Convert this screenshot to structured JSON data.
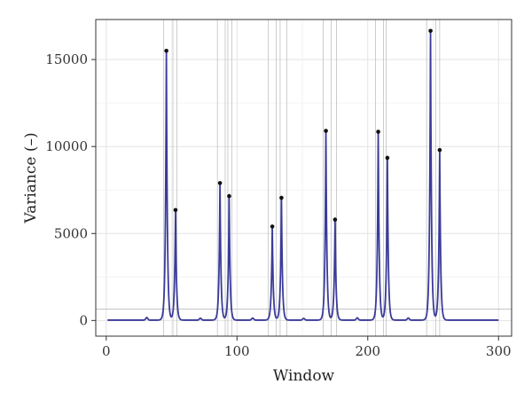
{
  "chart_data": {
    "type": "line",
    "title": "",
    "xlabel": "Window",
    "ylabel": "Variance (–)",
    "xlim": [
      -8,
      310
    ],
    "ylim": [
      -900,
      17300
    ],
    "xticks": [
      0,
      100,
      200,
      300
    ],
    "yticks": [
      0,
      5000,
      10000,
      15000
    ],
    "xtick_labels": [
      "0",
      "100",
      "200",
      "300"
    ],
    "ytick_labels": [
      "0",
      "5000",
      "10000",
      "15000"
    ],
    "grid": true,
    "line_color": "#3b3b9a",
    "threshold": 650,
    "x_range": [
      1,
      300
    ],
    "baseline": 20,
    "minor_bumps": [
      {
        "x": 31,
        "y": 150
      },
      {
        "x": 72,
        "y": 110
      },
      {
        "x": 112,
        "y": 120
      },
      {
        "x": 151,
        "y": 100
      },
      {
        "x": 192,
        "y": 130
      },
      {
        "x": 231,
        "y": 120
      }
    ],
    "vlines": [
      44,
      51,
      54,
      85,
      91,
      93,
      96,
      124,
      130,
      133,
      138,
      166,
      172,
      176,
      206,
      212,
      214,
      245,
      252,
      255
    ],
    "peaks": [
      {
        "x": 46,
        "y": 15500
      },
      {
        "x": 53,
        "y": 6350
      },
      {
        "x": 87,
        "y": 7900
      },
      {
        "x": 94,
        "y": 7150
      },
      {
        "x": 127,
        "y": 5400
      },
      {
        "x": 134,
        "y": 7050
      },
      {
        "x": 168,
        "y": 10900
      },
      {
        "x": 175,
        "y": 5800
      },
      {
        "x": 208,
        "y": 10850
      },
      {
        "x": 215,
        "y": 9350
      },
      {
        "x": 248,
        "y": 16650
      },
      {
        "x": 255,
        "y": 9800
      }
    ]
  }
}
